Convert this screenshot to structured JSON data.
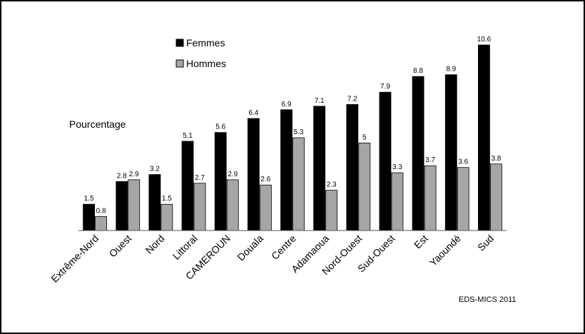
{
  "chart_data": {
    "type": "bar",
    "ylabel": "Pourcentage",
    "source": "EDS-MICS 2011",
    "categories": [
      "Extrême-Nord",
      "Ouest",
      "Nord",
      "Littoral",
      "CAMEROUN",
      "Douala",
      "Centre",
      "Adamaoua",
      "Nord-Ouest",
      "Sud-Ouest",
      "Est",
      "Yaoundé",
      "Sud"
    ],
    "series": [
      {
        "name": "Femmes",
        "color": "#000000",
        "values": [
          1.5,
          2.8,
          3.2,
          5.1,
          5.6,
          6.4,
          6.9,
          7.1,
          7.2,
          7.9,
          8.8,
          8.9,
          10.6
        ]
      },
      {
        "name": "Hommes",
        "color": "#a6a6a6",
        "values": [
          0.8,
          2.9,
          1.5,
          2.7,
          2.9,
          2.6,
          5.3,
          2.3,
          5,
          3.3,
          3.7,
          3.6,
          3.8
        ]
      }
    ],
    "ylim": [
      0,
      10.6
    ],
    "grid": false,
    "legend": "top-left"
  }
}
